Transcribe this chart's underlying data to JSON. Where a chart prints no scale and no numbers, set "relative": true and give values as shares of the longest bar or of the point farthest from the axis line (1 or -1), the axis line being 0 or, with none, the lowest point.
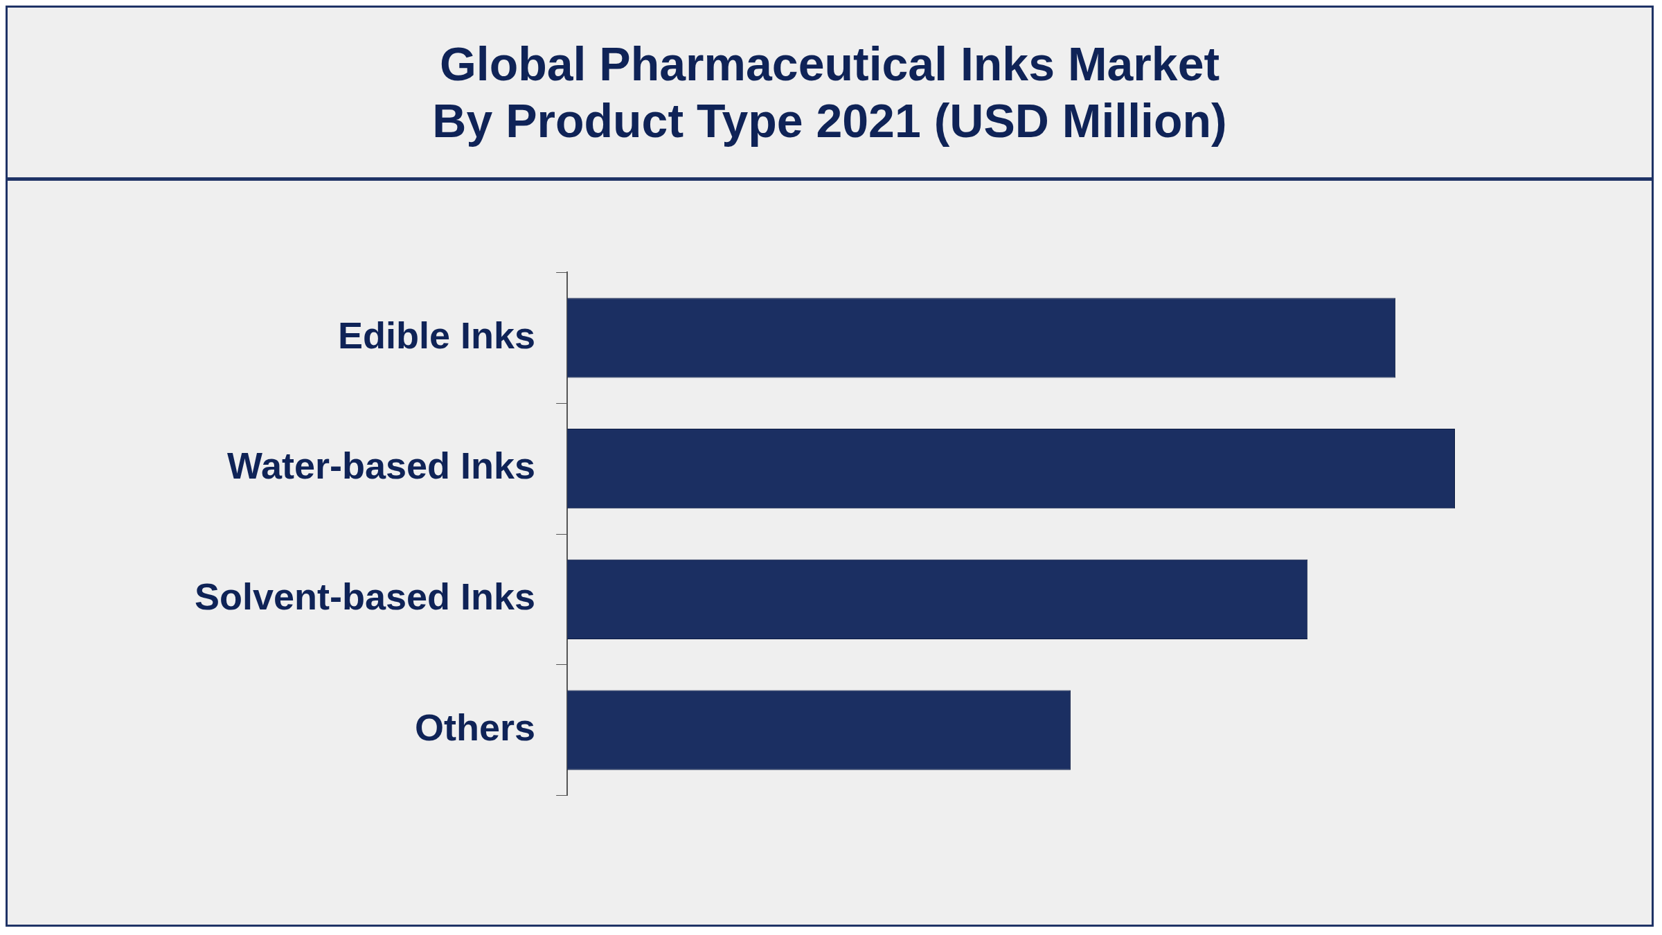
{
  "chart_data": {
    "type": "bar",
    "title": "Global Pharmaceutical Inks Market\nBy Product Type 2021 (USD Million)",
    "orientation": "horizontal",
    "relative": true,
    "categories": [
      "Edible Inks",
      "Water-based Inks",
      "Solvent-based Inks",
      "Others"
    ],
    "values": [
      0.933,
      1,
      0.834,
      0.567
    ],
    "color": "#1b2f62"
  }
}
